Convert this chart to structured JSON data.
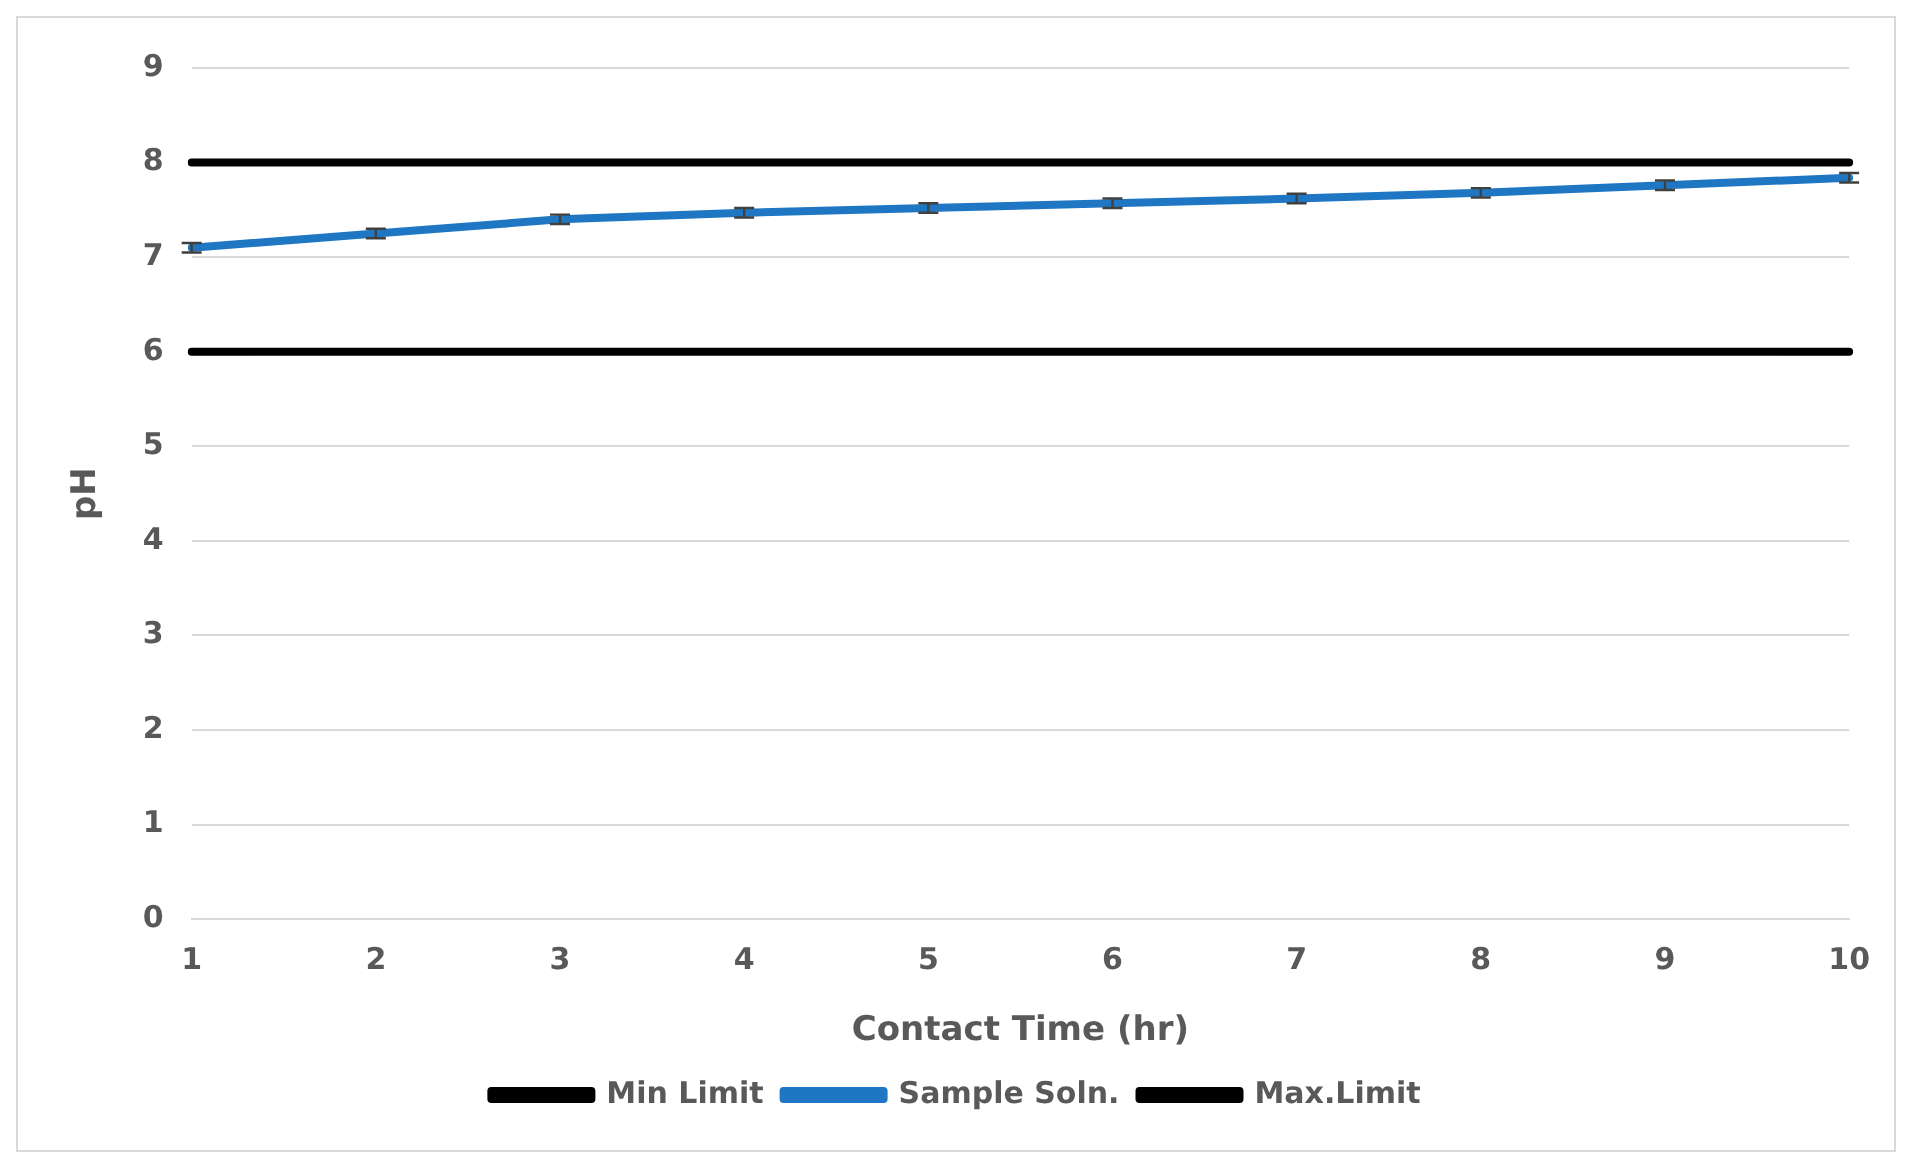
{
  "chart_data": {
    "type": "line",
    "xlabel": "Contact Time (hr)",
    "ylabel": "pH",
    "categories": [
      "1",
      "2",
      "3",
      "4",
      "5",
      "6",
      "7",
      "8",
      "9",
      "10"
    ],
    "series": [
      {
        "name": "Min Limit",
        "color": "#000000",
        "values": [
          6,
          6,
          6,
          6,
          6,
          6,
          6,
          6,
          6,
          6
        ]
      },
      {
        "name": "Sample Soln.",
        "color": "#1f77c4",
        "values": [
          7.1,
          7.25,
          7.4,
          7.47,
          7.52,
          7.57,
          7.62,
          7.68,
          7.76,
          7.84
        ],
        "errors": [
          0.05,
          0.05,
          0.05,
          0.05,
          0.05,
          0.05,
          0.05,
          0.05,
          0.05,
          0.05
        ]
      },
      {
        "name": "Max.Limit",
        "color": "#000000",
        "values": [
          8,
          8,
          8,
          8,
          8,
          8,
          8,
          8,
          8,
          8
        ]
      }
    ],
    "ylim": [
      0,
      9
    ],
    "yticks": [
      0,
      1,
      2,
      3,
      4,
      5,
      6,
      7,
      8,
      9
    ],
    "grid": "y",
    "legend": "bottom",
    "marker": "none",
    "line_style": "solid"
  }
}
